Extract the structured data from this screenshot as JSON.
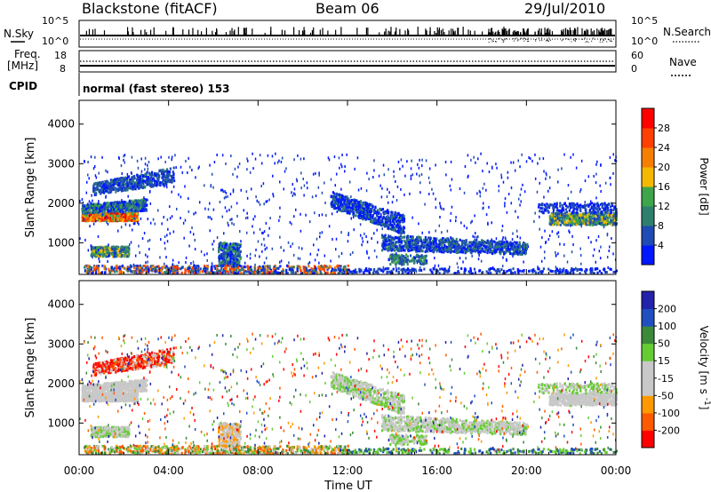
{
  "header": {
    "station": "Blackstone (fitACF)",
    "beam": "Beam 06",
    "date": "29/Jul/2010"
  },
  "top_panels": {
    "nsky_label": "N.Sky",
    "nsearch_label": "N.Search",
    "nsky_ticks": [
      "10^5",
      "10^0"
    ],
    "nsearch_ticks": [
      "10^5",
      "10^0"
    ],
    "freq_label_1": "Freq.",
    "freq_label_2": "[MHz]",
    "freq_ticks": [
      "18",
      "8"
    ],
    "nave_label": "Nave",
    "nave_ticks": [
      "60",
      "0"
    ],
    "cpid_label": "CPID",
    "cpid_text": "normal (fast stereo) 153"
  },
  "colors": {
    "power": [
      "#0018ff",
      "#1f4bb4",
      "#2f7f6f",
      "#3ea54a",
      "#f5b800",
      "#f57f00",
      "#ff4000",
      "#ff0000"
    ],
    "velocity": [
      "#ff0000",
      "#ff5a00",
      "#ff9900",
      "#c8c8c8",
      "#c8c8c8",
      "#66cc33",
      "#3a8a3a",
      "#2050c0",
      "#2222aa"
    ]
  },
  "chart_data": [
    {
      "type": "heatmap",
      "name": "power",
      "ylabel": "Slant Range [km]",
      "yticks": [
        "1000",
        "2000",
        "3000",
        "4000"
      ],
      "ylim": [
        200,
        4600
      ],
      "xlim": [
        0,
        24
      ],
      "xticks": [
        "00:00",
        "04:00",
        "08:00",
        "12:00",
        "16:00",
        "20:00",
        "00:00"
      ],
      "colorbar_label": "Power [dB]",
      "colorbar_ticks": [
        "4",
        "8",
        "12",
        "16",
        "20",
        "24",
        "28"
      ],
      "clim": [
        0,
        30
      ]
    },
    {
      "type": "heatmap",
      "name": "velocity",
      "ylabel": "Slant Range [km]",
      "yticks": [
        "1000",
        "2000",
        "3000",
        "4000"
      ],
      "ylim": [
        200,
        4600
      ],
      "xlim": [
        0,
        24
      ],
      "xticks": [
        "00:00",
        "04:00",
        "08:00",
        "12:00",
        "16:00",
        "20:00",
        "00:00"
      ],
      "xlabel": "Time UT",
      "colorbar_label": "Velocity [m s^-1]",
      "colorbar_ticks": [
        "200",
        "100",
        "50",
        "15",
        "-15",
        "-50",
        "-100",
        "-200"
      ],
      "clim": [
        -250,
        250
      ]
    }
  ]
}
